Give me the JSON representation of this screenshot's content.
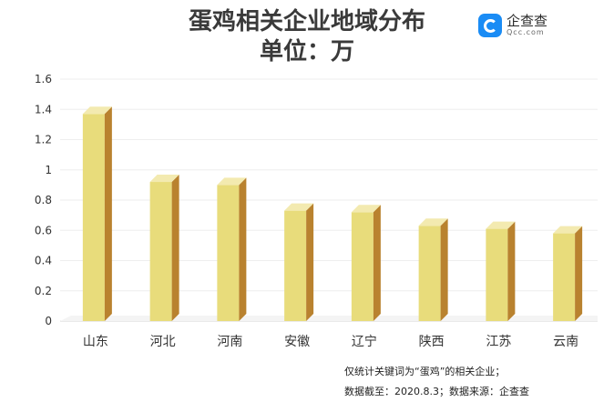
{
  "title_lines": [
    "蛋鸡相关企业地域分布",
    "单位：万"
  ],
  "logo": {
    "name_cn": "企查查",
    "name_en": "Qcc.com",
    "icon": "qcc-logo-icon"
  },
  "notes": [
    "仅统计关键词为“蛋鸡”的相关企业；",
    "数据截至：2020.8.3；数据来源：企查查"
  ],
  "colors": {
    "bar_front": "#e8dc7b",
    "bar_side": "#b9822f",
    "bar_top": "#f3eab0"
  },
  "chart_data": {
    "type": "bar",
    "categories": [
      "山东",
      "河北",
      "河南",
      "安徽",
      "辽宁",
      "陕西",
      "江苏",
      "云南"
    ],
    "values": [
      1.37,
      0.92,
      0.9,
      0.73,
      0.72,
      0.63,
      0.61,
      0.58
    ],
    "ylim": [
      0,
      1.6
    ],
    "yticks": [
      "0",
      "0.2",
      "0.4",
      "0.6",
      "0.8",
      "1",
      "1.2",
      "1.4",
      "1.6"
    ],
    "grid": true
  }
}
